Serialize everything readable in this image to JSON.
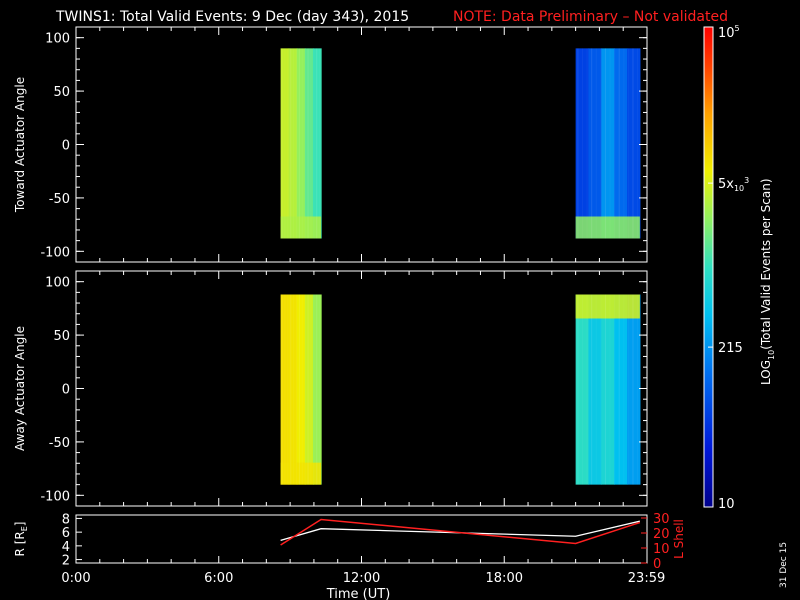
{
  "header": {
    "title": "TWINS1: Total Valid Events:  9 Dec (day 343), 2015",
    "note": "NOTE: Data Preliminary – Not validated"
  },
  "footer": {
    "date_stamp": "31 Dec 15"
  },
  "colors": {
    "background": "#000000",
    "frame": "#ffffff",
    "note": "#ff2020",
    "lshell": "#ff2020",
    "radius": "#ffffff"
  },
  "colorbar": {
    "label": "LOG",
    "label_sub": "10",
    "label_rest": "(Total Valid Events per Scan)",
    "ticks": [
      {
        "value": 10,
        "text": "10"
      },
      {
        "value": 215,
        "text": "215"
      },
      {
        "value": 5000,
        "text": "5x",
        "sub": "10",
        "sup": "3"
      },
      {
        "value": 100000,
        "text": "10",
        "sup": "5"
      }
    ],
    "range": [
      10,
      100000
    ],
    "scale": "log"
  },
  "chart_data": [
    {
      "type": "heatmap",
      "ylabel": "Toward Actuator Angle",
      "ylim": [
        -110,
        110
      ],
      "yticks": [
        100,
        50,
        0,
        -50,
        -100
      ],
      "xlim": [
        0,
        24
      ],
      "blocks": [
        {
          "t_start": 8.6,
          "t_end": 10.3,
          "angle_min": -88,
          "angle_max": 90,
          "band_values": [
            4200,
            3600,
            2600,
            1600,
            1100
          ],
          "bottom_value": 3300
        },
        {
          "t_start": 21.0,
          "t_end": 23.7,
          "angle_min": -88,
          "angle_max": 90,
          "band_values": [
            60,
            90,
            220,
            120,
            70
          ],
          "bottom_value": 2500
        }
      ]
    },
    {
      "type": "heatmap",
      "ylabel": "Away Actuator Angle",
      "ylim": [
        -110,
        110
      ],
      "yticks": [
        100,
        50,
        0,
        -50,
        -100
      ],
      "xlim": [
        0,
        24
      ],
      "blocks": [
        {
          "t_start": 8.6,
          "t_end": 10.3,
          "angle_min": -90,
          "angle_max": 88,
          "band_values": [
            8000,
            7500,
            6500,
            4500,
            2800
          ],
          "bottom_value": 7500
        },
        {
          "t_start": 21.0,
          "t_end": 23.7,
          "angle_min": -90,
          "angle_max": 88,
          "band_values": [
            900,
            500,
            700,
            400,
            250
          ],
          "top_value": 5000
        }
      ]
    },
    {
      "type": "line",
      "ylabel": "R [R",
      "ylabel_sub": "E",
      "ylabel_end": "]",
      "ylabel_right": "L Shell",
      "xlabel": "Time (UT)",
      "xticks": [
        {
          "value": 0,
          "text": "0:00"
        },
        {
          "value": 6,
          "text": "6:00"
        },
        {
          "value": 12,
          "text": "12:00"
        },
        {
          "value": 18,
          "text": "18:00"
        },
        {
          "value": 23.98,
          "text": "23:59"
        }
      ],
      "xlim": [
        0,
        24
      ],
      "ylim_left": [
        1.5,
        8.5
      ],
      "yticks_left": [
        8,
        6,
        4,
        2
      ],
      "ylim_right": [
        0,
        32
      ],
      "yticks_right": [
        30,
        20,
        10,
        0
      ],
      "series": [
        {
          "axis": "left",
          "x": [
            8.6,
            10.3,
            21.0,
            23.7
          ],
          "y": [
            4.8,
            6.5,
            5.4,
            7.6
          ]
        },
        {
          "axis": "right",
          "x": [
            8.6,
            10.3,
            21.0,
            23.7
          ],
          "y": [
            12,
            29,
            13,
            27
          ]
        }
      ]
    }
  ]
}
